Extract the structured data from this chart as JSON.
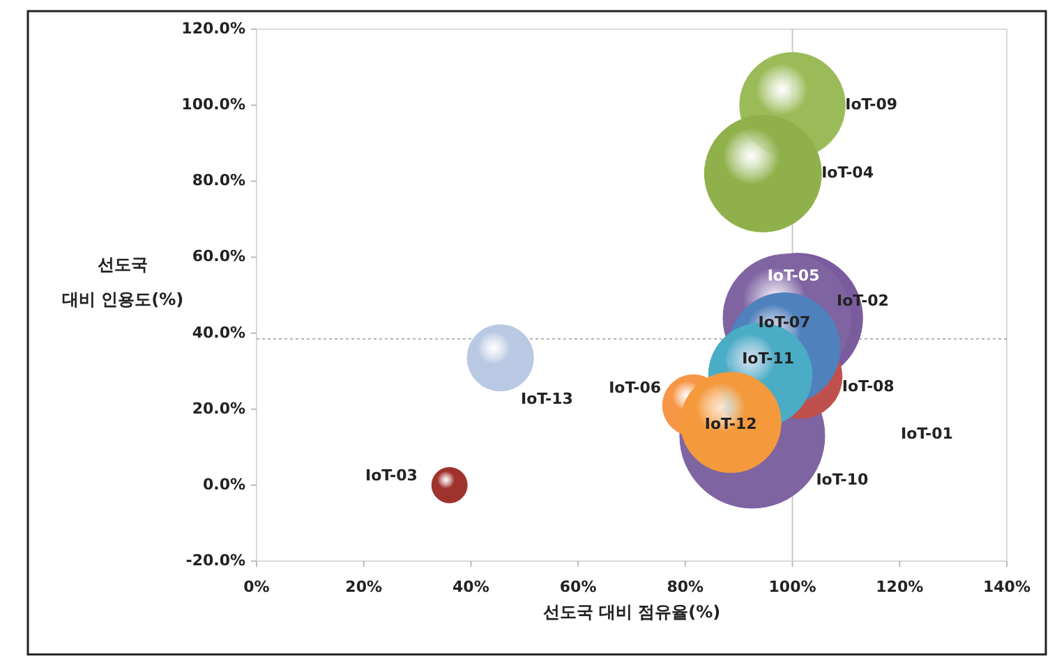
{
  "chart_data": {
    "type": "bubble",
    "xlabel": "선도국 대비 점유율(%)",
    "ylabel": "선도국\n대비 인용도(%)",
    "xlim": [
      0,
      140
    ],
    "ylim": [
      -20,
      120
    ],
    "xticks": [
      {
        "value": 0,
        "label": "0%"
      },
      {
        "value": 20,
        "label": "20%"
      },
      {
        "value": 40,
        "label": "40%"
      },
      {
        "value": 60,
        "label": "60%"
      },
      {
        "value": 80,
        "label": "80%"
      },
      {
        "value": 100,
        "label": "100%"
      },
      {
        "value": 120,
        "label": "120%"
      },
      {
        "value": 140,
        "label": "140%"
      }
    ],
    "yticks": [
      {
        "value": -20,
        "label": "-20.0%"
      },
      {
        "value": 0,
        "label": "0.0%"
      },
      {
        "value": 20,
        "label": "20.0%"
      },
      {
        "value": 40,
        "label": "40.0%"
      },
      {
        "value": 60,
        "label": "60.0%"
      },
      {
        "value": 80,
        "label": "80.0%"
      },
      {
        "value": 100,
        "label": "100.0%"
      },
      {
        "value": 120,
        "label": "120.0%"
      }
    ],
    "grid": false,
    "ref_lines": [
      {
        "axis": "x",
        "value": 100,
        "color": "#c8c8c8",
        "line_style": "solid"
      },
      {
        "axis": "y",
        "value": 38.5,
        "color": "#b0b0b0",
        "line_style": "dotted"
      }
    ],
    "annotations": [
      "IoT-01"
    ],
    "series": [
      {
        "name": "IoT-09",
        "color": "#9bbb59",
        "x": [
          100
        ],
        "values": [
          100
        ],
        "sizes": [
          0.53
        ]
      },
      {
        "name": "IoT-04",
        "color": "#8fb04a",
        "x": [
          94.5
        ],
        "values": [
          82
        ],
        "sizes": [
          0.65
        ]
      },
      {
        "name": "IoT-02",
        "color": "#7a5c9e",
        "x": [
          101
        ],
        "values": [
          44
        ],
        "sizes": [
          0.8
        ]
      },
      {
        "name": "IoT-05",
        "color": "#8064a2",
        "x": [
          99
        ],
        "values": [
          44
        ],
        "sizes": [
          0.78
        ]
      },
      {
        "name": "IoT-10",
        "color": "#7e64a0",
        "x": [
          92.5
        ],
        "values": [
          13
        ],
        "sizes": [
          1
        ]
      },
      {
        "name": "IoT-08",
        "color": "#c0504d",
        "x": [
          101.5
        ],
        "values": [
          28.5
        ],
        "sizes": [
          0.33
        ]
      },
      {
        "name": "IoT-07",
        "color": "#4f81bd",
        "x": [
          98.5
        ],
        "values": [
          36
        ],
        "sizes": [
          0.59
        ]
      },
      {
        "name": "IoT-11",
        "color": "#4bacc6",
        "x": [
          94
        ],
        "values": [
          29
        ],
        "sizes": [
          0.51
        ]
      },
      {
        "name": "IoT-06",
        "color": "#f79646",
        "x": [
          81.5
        ],
        "values": [
          21
        ],
        "sizes": [
          0.18
        ]
      },
      {
        "name": "IoT-12",
        "color": "#f59a3c",
        "x": [
          88.5
        ],
        "values": [
          16.5
        ],
        "sizes": [
          0.48
        ]
      },
      {
        "name": "IoT-13",
        "color": "#b9c9e3",
        "x": [
          45.5
        ],
        "values": [
          33.5
        ],
        "sizes": [
          0.21
        ]
      },
      {
        "name": "IoT-03",
        "color": "#a0322e",
        "x": [
          36
        ],
        "values": [
          0
        ],
        "sizes": [
          0.06
        ]
      }
    ]
  }
}
